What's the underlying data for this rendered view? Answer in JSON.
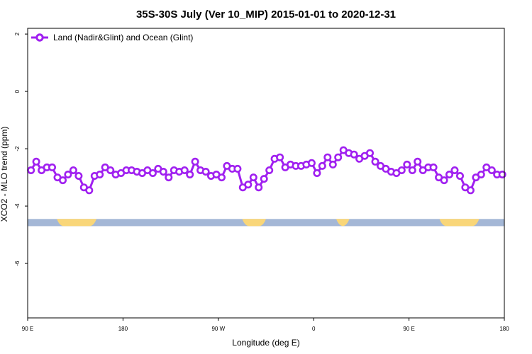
{
  "chart_data": {
    "type": "line",
    "title": "35S-30S July (Ver 10_MIP)   2015-01-01 to 2020-12-31",
    "xlabel": "Longitude (deg E)",
    "ylabel": "XCO2 - MLO trend (ppm)",
    "x_ticks": [
      "90 E",
      "180",
      "90 W",
      "0",
      "90 E",
      "180"
    ],
    "y_ticks": [
      "2",
      "0",
      "-2",
      "-4",
      "-6"
    ],
    "xlim": [
      90,
      450
    ],
    "ylim": [
      -7.9,
      2.2
    ],
    "grid": false,
    "legend_position": "top-left",
    "colors": {
      "series": "#a020f0",
      "ocean": "#a4b7d6",
      "land": "#f9d679"
    },
    "series": [
      {
        "name": "Land (Nadir&Glint) and Ocean (Glint)",
        "x": [
          92.5,
          96.5,
          100.5,
          104.5,
          108.5,
          112.5,
          116.5,
          120.5,
          124.5,
          128.5,
          132.5,
          136.5,
          140.5,
          144.5,
          148.5,
          152.5,
          156.5,
          160.5,
          164.5,
          168.5,
          172.5,
          176.5,
          180.5,
          184.5,
          188.5,
          192.5,
          196.5,
          200.5,
          204.5,
          208.5,
          212.5,
          216.5,
          220.5,
          224.5,
          228.5,
          232.5,
          236.5,
          240.5,
          244.5,
          248.5,
          252.5,
          256.5,
          260.5,
          264.5,
          268.5,
          272.5,
          276.5,
          280.5,
          284.5,
          288.5,
          292.5,
          296.5,
          300.5,
          304.5,
          308.5,
          312.5,
          316.5,
          320.5,
          324.5,
          328.5,
          332.5,
          336.5,
          340.5,
          344.5,
          348.5,
          352.5,
          356.5,
          360.5,
          364.5,
          368.5,
          372.5,
          376.5,
          380.5,
          384.5,
          388.5,
          392.5,
          396.5,
          400.5,
          404.5,
          408.5,
          412.5,
          416.5,
          420.5,
          424.5,
          428.5,
          432.5,
          436.5,
          440.5,
          444.5,
          448.5
        ],
        "values": [
          -2.75,
          -2.45,
          -2.75,
          -2.65,
          -2.65,
          -3.0,
          -3.1,
          -2.9,
          -2.75,
          -2.95,
          -3.35,
          -3.45,
          -2.95,
          -2.9,
          -2.65,
          -2.75,
          -2.9,
          -2.85,
          -2.75,
          -2.75,
          -2.8,
          -2.85,
          -2.75,
          -2.85,
          -2.7,
          -2.8,
          -3.0,
          -2.75,
          -2.8,
          -2.75,
          -2.9,
          -2.45,
          -2.75,
          -2.8,
          -2.95,
          -2.9,
          -3.0,
          -2.6,
          -2.7,
          -2.7,
          -3.35,
          -3.25,
          -3.0,
          -3.35,
          -3.05,
          -2.75,
          -2.35,
          -2.3,
          -2.65,
          -2.55,
          -2.6,
          -2.6,
          -2.55,
          -2.5,
          -2.85,
          -2.6,
          -2.3,
          -2.55,
          -2.3,
          -2.05,
          -2.15,
          -2.2,
          -2.35,
          -2.25,
          -2.15,
          -2.45,
          -2.6,
          -2.7,
          -2.8,
          -2.85,
          -2.75,
          -2.55,
          -2.75,
          -2.45,
          -2.75,
          -2.65,
          -2.65,
          -3.0,
          -3.1,
          -2.9,
          -2.75,
          -2.95,
          -3.35,
          -3.45,
          -3.0,
          -2.9,
          -2.65,
          -2.75,
          -2.9,
          -2.9
        ]
      }
    ],
    "surface_band": {
      "y_range": [
        -4.7,
        -4.45
      ],
      "land_segments": [
        [
          112,
          142
        ],
        [
          252,
          270
        ],
        [
          323,
          333
        ],
        [
          401,
          431
        ]
      ]
    }
  }
}
